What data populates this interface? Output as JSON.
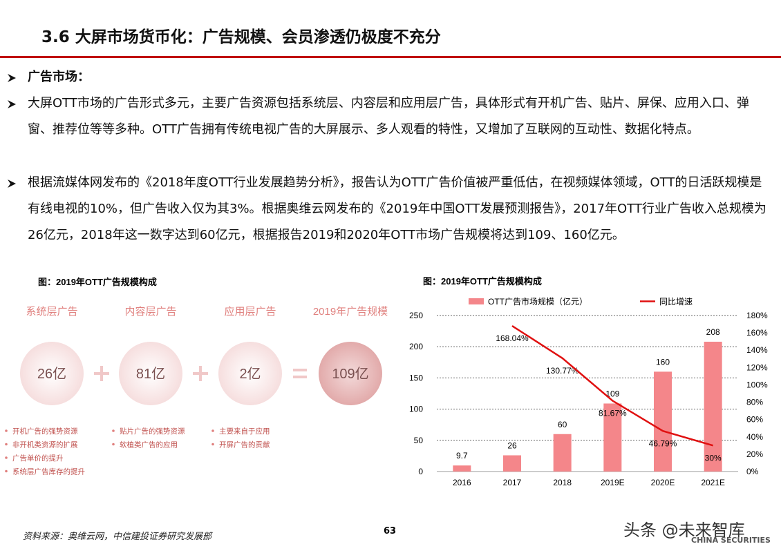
{
  "header": {
    "title": "3.6 大屏市场货币化：广告规模、会员渗透仍极度不充分"
  },
  "bullets": [
    {
      "text": "广告市场：",
      "bold": true
    },
    {
      "text": "大屏OTT市场的广告形式多元，主要广告资源包括系统层、内容层和应用层广告，具体形式有开机广告、贴片、屏保、应用入口、弹窗、推荐位等等多种。OTT广告拥有传统电视广告的大屏展示、多人观看的特性，又增加了互联网的互动性、数据化特点。",
      "bold": false
    },
    {
      "text": "根据流媒体网发布的《2018年度OTT行业发展趋势分析》，报告认为OTT广告价值被严重低估，在视频媒体领域，OTT的日活跃规模是有线电视的10%，但广告收入仅为其3%。根据奥维云网发布的《2019年中国OTT发展预测报告》，2017年OTT行业广告收入总规模为26亿元，2018年这一数字达到60亿元，根据报告2019和2020年OTT市场广告规模将达到109、160亿元。",
      "bold": false
    }
  ],
  "left_figure": {
    "caption": "图：2019年OTT广告规模构成",
    "columns": [
      {
        "label": "系统层广告",
        "value": "26亿",
        "items": [
          "开机广告的强势资源",
          "非开机类资源的扩展",
          "广告单价的提升",
          "系统层广告库存的提升"
        ]
      },
      {
        "label": "内容层广告",
        "value": "81亿",
        "items": [
          "贴片广告的强势资源",
          "软植类广告的应用"
        ]
      },
      {
        "label": "应用层广告",
        "value": "2亿",
        "items": [
          "主要来自于应用",
          "开屏广告的贡献"
        ]
      },
      {
        "label": "2019年广告规模",
        "value": "109亿",
        "items": []
      }
    ]
  },
  "chart_data": {
    "type": "bar",
    "title": "图：2019年OTT广告规模构成",
    "categories": [
      "2016",
      "2017",
      "2018",
      "2019E",
      "2020E",
      "2021E"
    ],
    "series": [
      {
        "name": "OTT广告市场规模（亿元）",
        "type": "bar",
        "color": "#f4868a",
        "values": [
          9.7,
          26,
          60,
          109,
          160,
          208
        ]
      },
      {
        "name": "同比增速",
        "type": "line",
        "axis": "y2",
        "color": "#e01010",
        "values": [
          null,
          168.04,
          130.77,
          81.67,
          46.79,
          30
        ],
        "value_labels": [
          null,
          "168.04%",
          "130.77%",
          "81.67%",
          "46.79%",
          "30%"
        ]
      }
    ],
    "ylim": [
      0,
      250
    ],
    "yticks": [
      0,
      50,
      100,
      150,
      200,
      250
    ],
    "y2lim": [
      0,
      180
    ],
    "y2ticks": [
      {
        "value": 0,
        "label": "0%"
      },
      {
        "value": 20,
        "label": "20%"
      },
      {
        "value": 40,
        "label": "40%"
      },
      {
        "value": 60,
        "label": "60%"
      },
      {
        "value": 80,
        "label": "80%"
      },
      {
        "value": 100,
        "label": "100%"
      },
      {
        "value": 120,
        "label": "120%"
      },
      {
        "value": 140,
        "label": "140%"
      },
      {
        "value": 160,
        "label": "160%"
      },
      {
        "value": 180,
        "label": "180%"
      }
    ],
    "grid": true,
    "legend": "top"
  },
  "footer": {
    "source": "资料来源：奥维云网，中信建投证券研究发展部",
    "page": "63",
    "watermark": "头条 @未来智库",
    "brand": "CHINA SECURITIES"
  }
}
